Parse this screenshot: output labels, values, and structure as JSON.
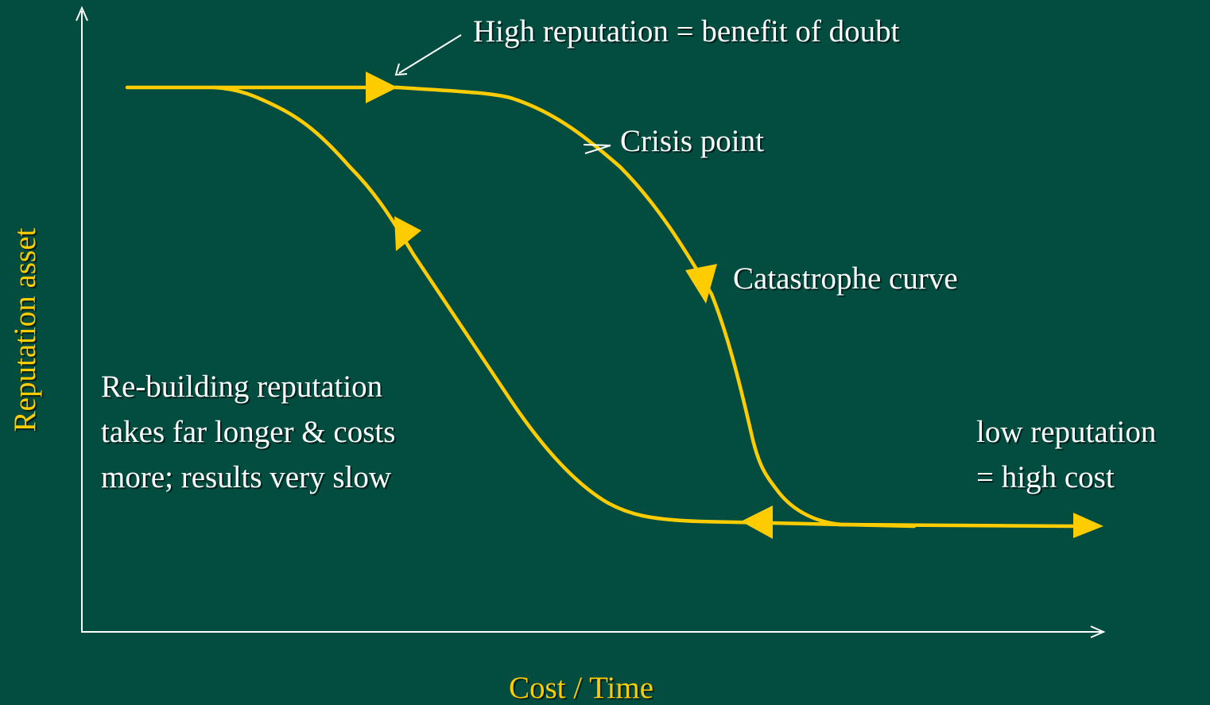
{
  "axes": {
    "y_label": "Reputation asset",
    "x_label": "Cost / Time"
  },
  "annotations": {
    "high_reputation": "High reputation = benefit of doubt",
    "crisis_point": "Crisis point",
    "catastrophe_curve": "Catastrophe curve",
    "rebuilding": [
      "Re-building reputation",
      "takes far longer & costs",
      "more; results very slow"
    ],
    "low_reputation": [
      "low reputation",
      "= high cost"
    ]
  }
}
